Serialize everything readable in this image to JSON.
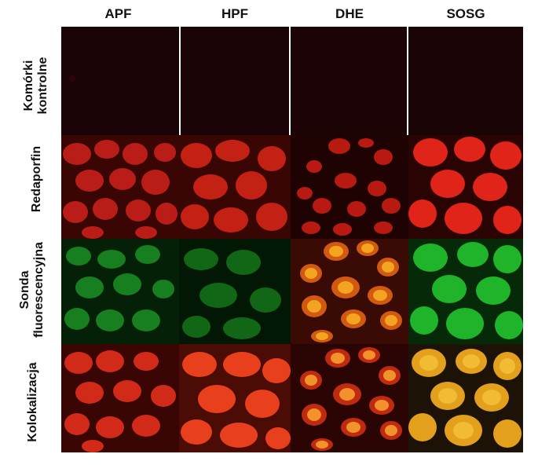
{
  "columns": [
    "APF",
    "HPF",
    "DHE",
    "SOSG"
  ],
  "rows": [
    {
      "label_line1": "Komórki",
      "label_line2": "kontrolne"
    },
    {
      "label_line1": "Redaporfin",
      "label_line2": ""
    },
    {
      "label_line1": "Sonda",
      "label_line2": "fluorescencyjna"
    },
    {
      "label_line1": "Kolokalizacja",
      "label_line2": ""
    }
  ],
  "colors": {
    "control_bg": "#1a0305",
    "red_bg": "#3a0603",
    "red_cell": "#e0241a",
    "green_bg": "#042006",
    "green_cell": "#1fb42a",
    "dhe_bg": "#3a0a04",
    "dhe_cell": "#f59a1a",
    "coloc_red_cell": "#e8401c",
    "coloc_yellow_cell": "#f0b020"
  }
}
